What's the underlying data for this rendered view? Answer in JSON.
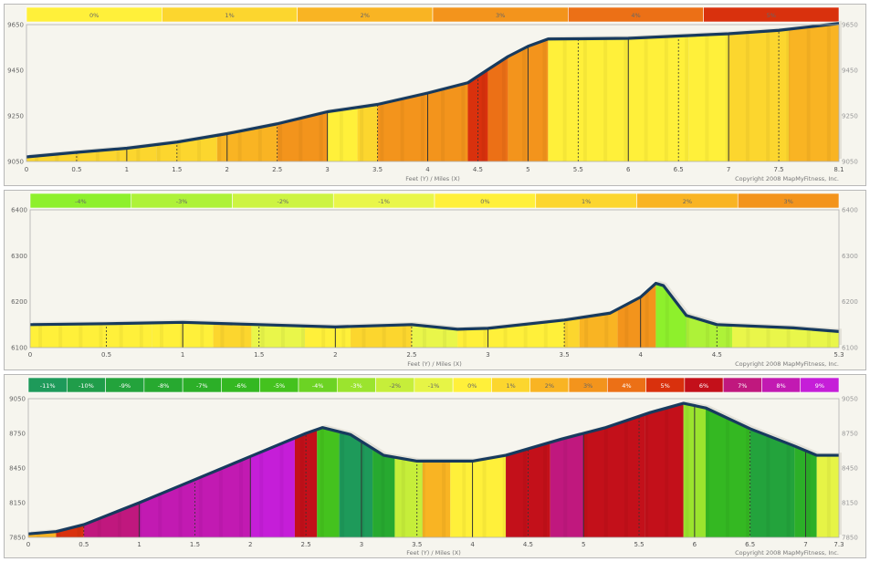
{
  "chart_data": [
    {
      "type": "area",
      "grade_legend": [
        {
          "label": "0%",
          "color": "#fff03a"
        },
        {
          "label": "1%",
          "color": "#fcd62e"
        },
        {
          "label": "2%",
          "color": "#f9b423"
        },
        {
          "label": "3%",
          "color": "#f3941c"
        },
        {
          "label": "4%",
          "color": "#ec7016"
        },
        {
          "label": "5%",
          "color": "#d9310d"
        }
      ],
      "xlabel": "Feet (Y) / Miles (X)",
      "copyright": "Copyright 2008 MapMyFitness, Inc.",
      "xlim": [
        0,
        8.1
      ],
      "ylim": [
        9050,
        9650
      ],
      "x_ticks": [
        "0",
        "0.5",
        "1",
        "1.5",
        "2",
        "2.5",
        "3",
        "3.5",
        "4",
        "4.5",
        "5",
        "5.5",
        "6",
        "6.5",
        "7",
        "7.5",
        "8.1"
      ],
      "x_tick_values": [
        0,
        0.5,
        1,
        1.5,
        2,
        2.5,
        3,
        3.5,
        4,
        4.5,
        5,
        5.5,
        6,
        6.5,
        7,
        7.5,
        8.1
      ],
      "y_ticks_left": [
        "9050",
        "9250",
        "9450",
        "9650"
      ],
      "y_ticks_right": [
        "9050",
        "9250",
        "9450",
        "9650"
      ],
      "y_tick_values": [
        9050,
        9250,
        9450,
        9650
      ],
      "elevation": {
        "x": [
          0,
          0.5,
          1,
          1.5,
          2,
          2.5,
          3,
          3.5,
          4,
          4.4,
          4.6,
          4.8,
          5,
          5.2,
          5.5,
          6,
          6.5,
          7,
          7.5,
          8.1
        ],
        "y": [
          9070,
          9090,
          9108,
          9135,
          9172,
          9215,
          9268,
          9300,
          9350,
          9395,
          9453,
          9510,
          9555,
          9587,
          9588,
          9590,
          9600,
          9610,
          9625,
          9655
        ]
      },
      "grade_bands": {
        "x_start": [
          0,
          0.3,
          0.9,
          1.3,
          1.9,
          2.5,
          3.0,
          3.3,
          3.5,
          4.0,
          4.4,
          4.6,
          4.8,
          5.2,
          6.0,
          6.6,
          7.0,
          7.6
        ],
        "x_end": [
          0.3,
          0.9,
          1.3,
          1.9,
          2.5,
          3.0,
          3.3,
          3.5,
          4.0,
          4.4,
          4.6,
          4.8,
          5.2,
          6.0,
          6.6,
          7.0,
          7.6,
          8.1
        ],
        "grade": [
          "1%",
          "1%",
          "1%",
          "1%",
          "2%",
          "3%",
          "0%",
          "1%",
          "3%",
          "3%",
          "5%",
          "4%",
          "3%",
          "0%",
          "0%",
          "0%",
          "1%",
          "2%"
        ]
      }
    },
    {
      "type": "area",
      "grade_legend": [
        {
          "label": "-4%",
          "color": "#8ef02c"
        },
        {
          "label": "-3%",
          "color": "#aef238"
        },
        {
          "label": "-2%",
          "color": "#cdf442"
        },
        {
          "label": "-1%",
          "color": "#e9f64a"
        },
        {
          "label": "0%",
          "color": "#fff03a"
        },
        {
          "label": "1%",
          "color": "#fcd62e"
        },
        {
          "label": "2%",
          "color": "#f9b423"
        },
        {
          "label": "3%",
          "color": "#f3941c"
        }
      ],
      "xlabel": "Feet (Y) / Miles (X)",
      "copyright": "Copyright 2008 MapMyFitness, Inc.",
      "xlim": [
        0,
        5.3
      ],
      "ylim": [
        6100,
        6400
      ],
      "x_ticks": [
        "0",
        "0.5",
        "1",
        "1.5",
        "2",
        "2.5",
        "3",
        "3.5",
        "4",
        "4.5",
        "5.3"
      ],
      "x_tick_values": [
        0,
        0.5,
        1,
        1.5,
        2,
        2.5,
        3,
        3.5,
        4,
        4.5,
        5.3
      ],
      "y_ticks_left": [
        "6100",
        "6200",
        "6300",
        "6400"
      ],
      "y_ticks_right": [
        "6100",
        "6200",
        "6300",
        "6400"
      ],
      "y_tick_values": [
        6100,
        6200,
        6300,
        6400
      ],
      "elevation": {
        "x": [
          0,
          0.5,
          1,
          1.5,
          2,
          2.5,
          2.8,
          3,
          3.5,
          3.8,
          4,
          4.1,
          4.15,
          4.3,
          4.5,
          5,
          5.3
        ],
        "y": [
          6150,
          6152,
          6155,
          6150,
          6145,
          6150,
          6140,
          6142,
          6160,
          6175,
          6210,
          6240,
          6235,
          6170,
          6150,
          6143,
          6135
        ]
      },
      "grade_bands": {
        "x_start": [
          0,
          0.8,
          1.2,
          1.45,
          1.8,
          2.1,
          2.5,
          2.8,
          3.0,
          3.5,
          3.6,
          3.85,
          4.1,
          4.3,
          4.6
        ],
        "x_end": [
          0.8,
          1.2,
          1.45,
          1.8,
          2.1,
          2.5,
          2.8,
          3.0,
          3.5,
          3.6,
          3.85,
          4.1,
          4.3,
          4.6,
          5.3
        ],
        "grade": [
          "0%",
          "0%",
          "1%",
          "-1%",
          "0%",
          "1%",
          "-1%",
          "0%",
          "0%",
          "1%",
          "2%",
          "3%",
          "-4%",
          "-3%",
          "-1%"
        ]
      }
    },
    {
      "type": "area",
      "grade_legend": [
        {
          "label": "-11%",
          "color": "#1e9a5a"
        },
        {
          "label": "-10%",
          "color": "#209d4a"
        },
        {
          "label": "-9%",
          "color": "#23a33c"
        },
        {
          "label": "-8%",
          "color": "#27a930"
        },
        {
          "label": "-7%",
          "color": "#2caf28"
        },
        {
          "label": "-6%",
          "color": "#34b822"
        },
        {
          "label": "-5%",
          "color": "#44c21e"
        },
        {
          "label": "-4%",
          "color": "#6cd324"
        },
        {
          "label": "-3%",
          "color": "#9be42e"
        },
        {
          "label": "-2%",
          "color": "#c6ee3a"
        },
        {
          "label": "-1%",
          "color": "#e6f446"
        },
        {
          "label": "0%",
          "color": "#fff03a"
        },
        {
          "label": "1%",
          "color": "#fcd62e"
        },
        {
          "label": "2%",
          "color": "#f9b423"
        },
        {
          "label": "3%",
          "color": "#f3941c"
        },
        {
          "label": "4%",
          "color": "#ec7016"
        },
        {
          "label": "5%",
          "color": "#d9310d"
        },
        {
          "label": "6%",
          "color": "#c3101a"
        },
        {
          "label": "7%",
          "color": "#c0187e"
        },
        {
          "label": "8%",
          "color": "#c21ab2"
        },
        {
          "label": "9%",
          "color": "#c51ed8"
        }
      ],
      "legend_label_overrides": [
        "-11%",
        "-10%",
        "-9%",
        "-8%",
        "-7%",
        "-6%",
        "-5%",
        "-4%",
        "-3%",
        "-2%",
        "-1%",
        "0%",
        "1%",
        "2%",
        "3%",
        "4%",
        "5%",
        "6%",
        "7%",
        "8%",
        "9%"
      ],
      "xlabel": "Feet (Y) / Miles (X)",
      "copyright": "Copyright 2008 MapMyFitness, Inc.",
      "xlim": [
        0,
        7.3
      ],
      "ylim": [
        7850,
        9050
      ],
      "x_ticks": [
        "0",
        "0.5",
        "1",
        "1.5",
        "2",
        "2.5",
        "3",
        "3.5",
        "4",
        "4.5",
        "5",
        "5.5",
        "6",
        "6.5",
        "7",
        "7.3"
      ],
      "x_tick_values": [
        0,
        0.5,
        1,
        1.5,
        2,
        2.5,
        3,
        3.5,
        4,
        4.5,
        5,
        5.5,
        6,
        6.5,
        7,
        7.3
      ],
      "y_ticks_left": [
        "7850",
        "8150",
        "8450",
        "8750",
        "9050"
      ],
      "y_ticks_right": [
        "7850",
        "8150",
        "8450",
        "8750",
        "9050"
      ],
      "y_tick_values": [
        7850,
        8150,
        8450,
        8750,
        9050
      ],
      "elevation": {
        "x": [
          0,
          0.25,
          0.5,
          1,
          1.5,
          2,
          2.5,
          2.65,
          2.9,
          3.2,
          3.5,
          4,
          4.3,
          4.8,
          5.2,
          5.6,
          5.9,
          6.1,
          6.5,
          6.9,
          7.1,
          7.3
        ],
        "y": [
          7880,
          7900,
          7960,
          8150,
          8350,
          8550,
          8750,
          8800,
          8740,
          8560,
          8510,
          8510,
          8560,
          8700,
          8800,
          8930,
          9010,
          8970,
          8790,
          8640,
          8560,
          8560
        ]
      },
      "grade_bands": {
        "x_start": [
          0,
          0.25,
          0.5,
          1.0,
          1.5,
          2.0,
          2.4,
          2.6,
          2.8,
          3.1,
          3.3,
          3.55,
          3.8,
          4.3,
          4.7,
          5.0,
          5.55,
          5.9,
          6.1,
          6.5,
          6.9,
          7.1
        ],
        "x_end": [
          0.25,
          0.5,
          1.0,
          1.5,
          2.0,
          2.4,
          2.6,
          2.8,
          3.1,
          3.3,
          3.55,
          3.8,
          4.3,
          4.7,
          5.0,
          5.55,
          5.9,
          6.1,
          6.5,
          6.9,
          7.1,
          7.3
        ],
        "grade": [
          "2%",
          "5%",
          "7%",
          "8%",
          "8%",
          "9%",
          "6%",
          "-5%",
          "-11%",
          "-8%",
          "-2%",
          "2%",
          "0%",
          "6%",
          "7%",
          "6%",
          "6%",
          "-3%",
          "-6%",
          "-9%",
          "-7%",
          "-1%"
        ]
      }
    }
  ]
}
